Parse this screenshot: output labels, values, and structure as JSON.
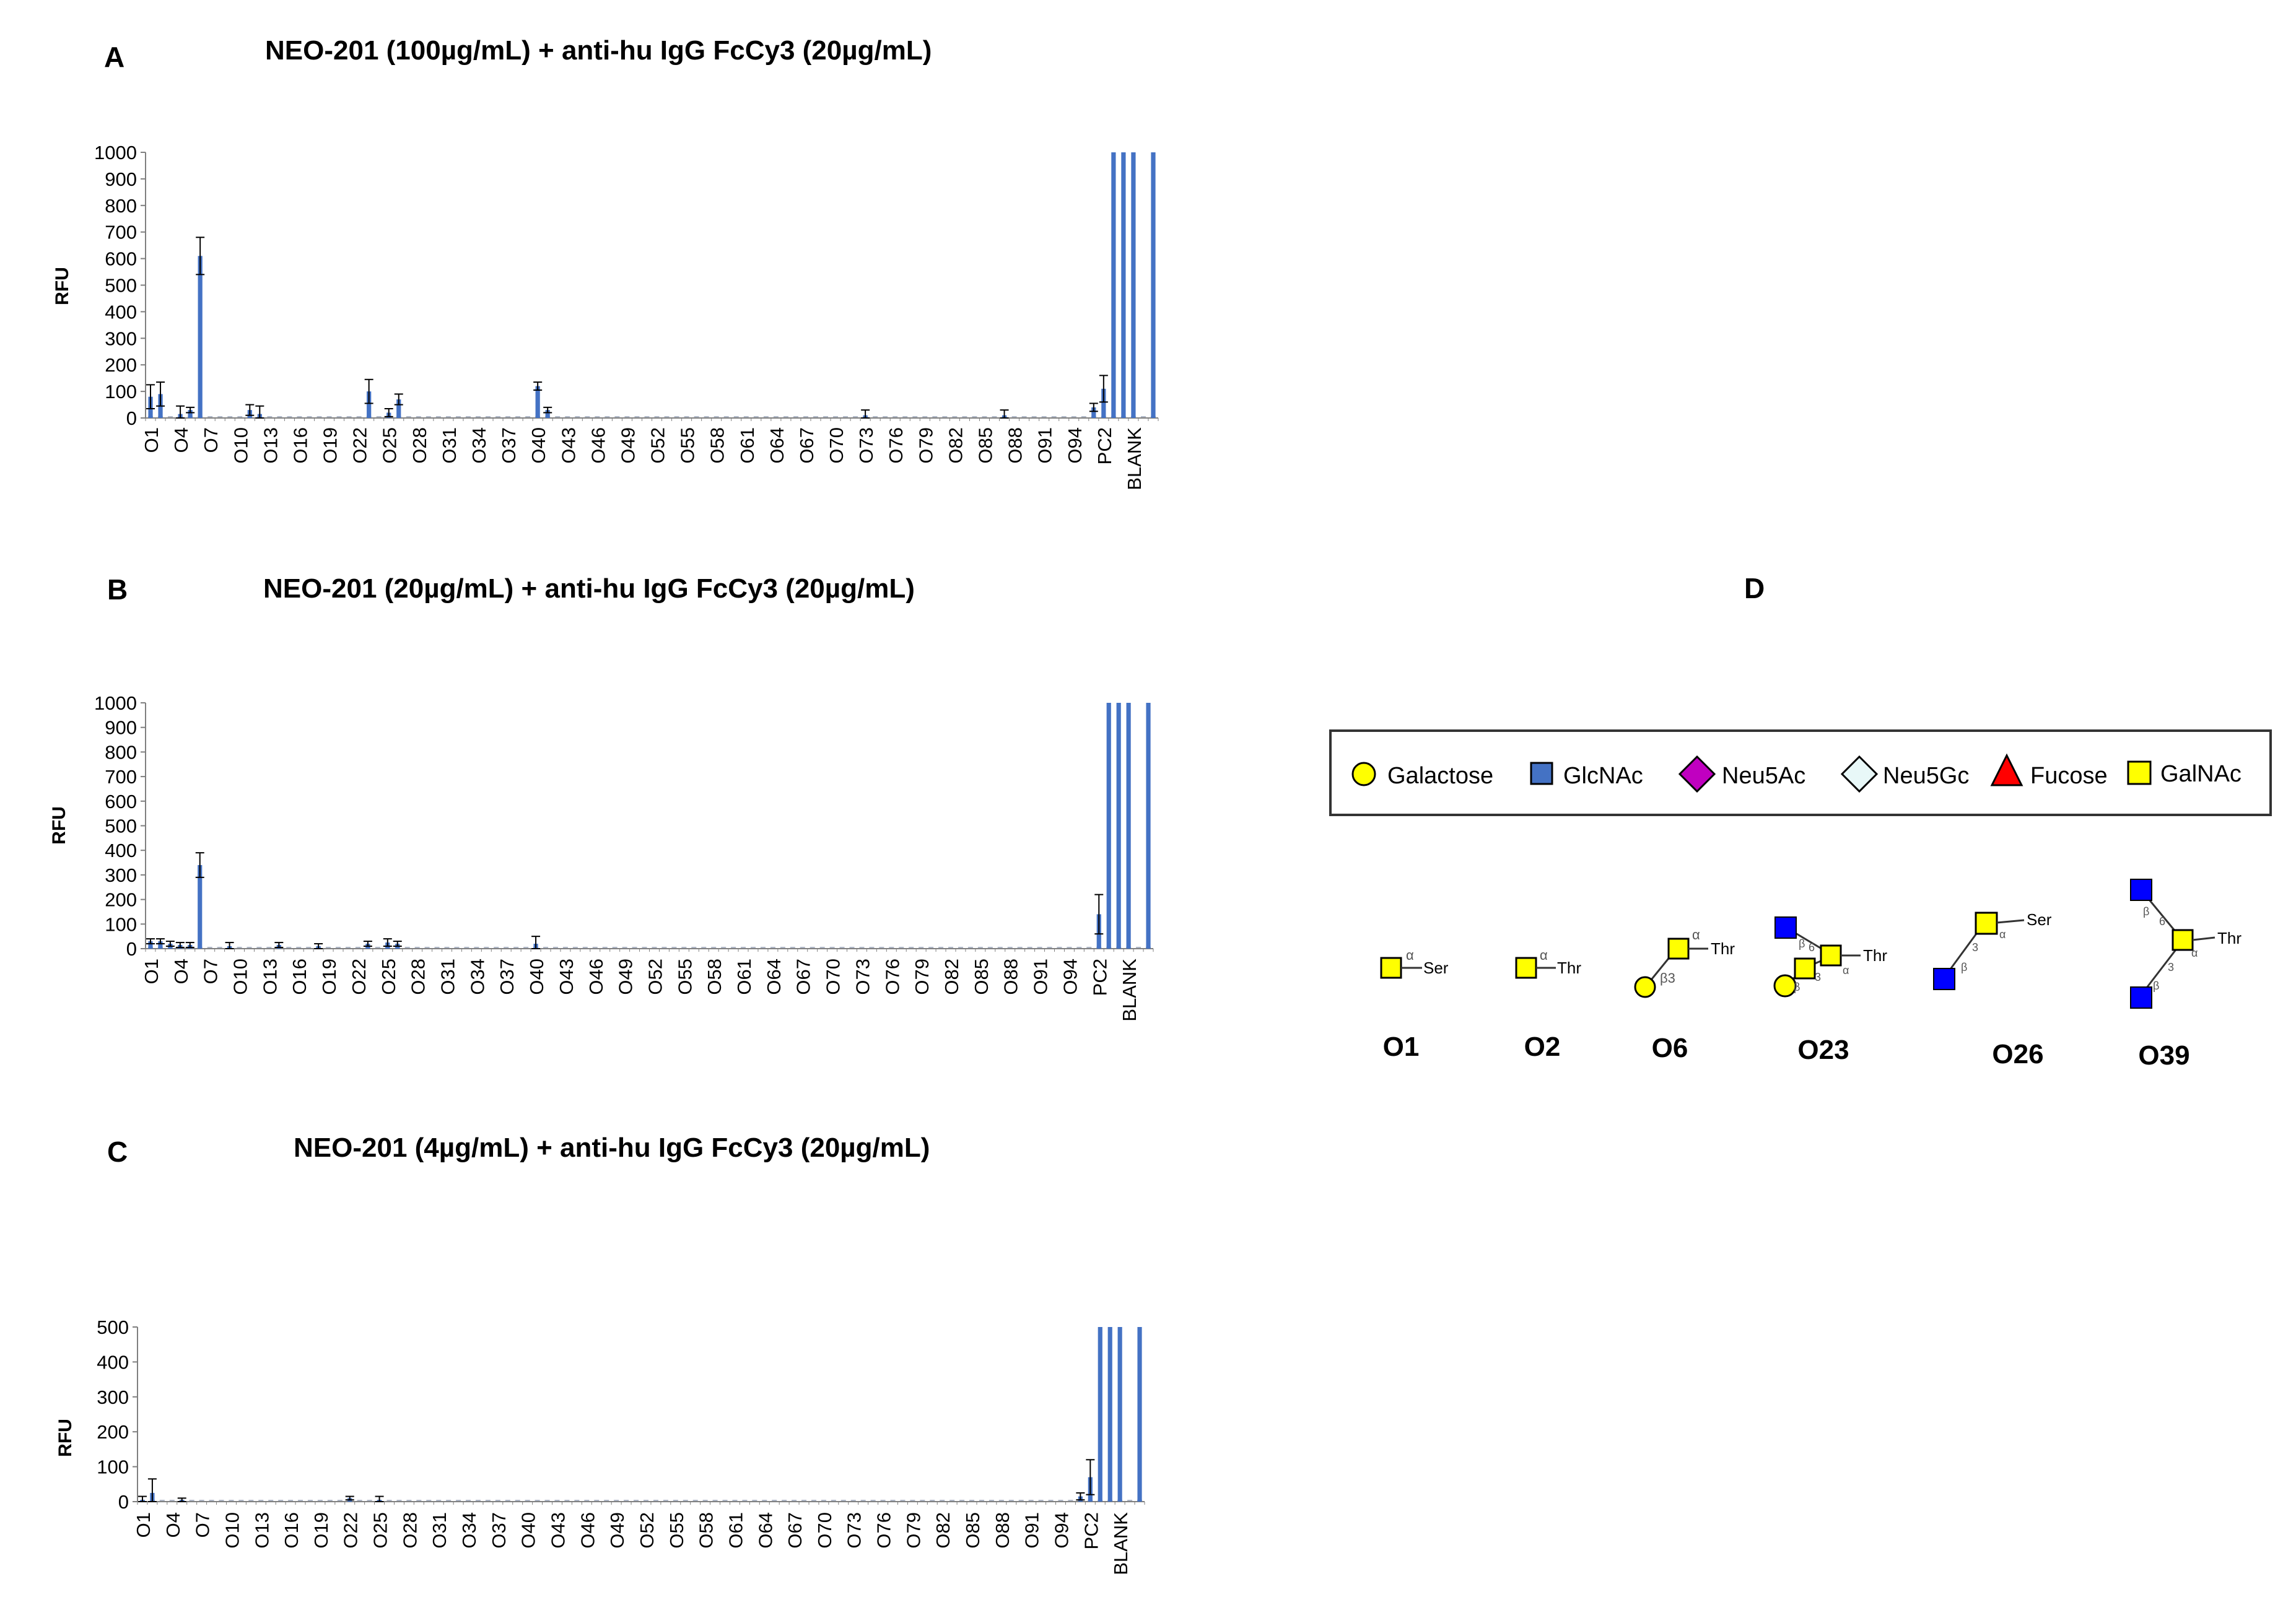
{
  "panels": [
    {
      "letter": "A",
      "title": "NEO-201 (100µg/mL) + anti-hu IgG FcCy3 (20µg/mL)"
    },
    {
      "letter": "B",
      "title": "NEO-201 (20µg/mL) + anti-hu IgG FcCy3 (20µg/mL)"
    },
    {
      "letter": "C",
      "title": "NEO-201 (4µg/mL) + anti-hu IgG FcCy3 (20µg/mL)"
    },
    {
      "letter": "D",
      "title": ""
    }
  ],
  "colors": {
    "bar": "#4472C4",
    "error": "#000000",
    "axis": "#7f7f7f"
  },
  "chart_data": [
    {
      "type": "bar",
      "title": "NEO-201 (100µg/mL) + anti-hu IgG FcCy3 (20µg/mL)",
      "ylabel": "RFU",
      "ylim": [
        0,
        1000
      ],
      "yticks": [
        0,
        100,
        200,
        300,
        400,
        500,
        600,
        700,
        800,
        900,
        1000
      ],
      "tick_labels": [
        "O1",
        "O4",
        "O7",
        "O10",
        "O13",
        "O16",
        "O19",
        "O22",
        "O25",
        "O28",
        "O31",
        "O34",
        "O37",
        "O40",
        "O43",
        "O46",
        "O49",
        "O52",
        "O55",
        "O58",
        "O61",
        "O64",
        "O67",
        "O70",
        "O73",
        "O76",
        "O79",
        "O82",
        "O85",
        "O88",
        "O91",
        "O94",
        "PC2",
        "BLANK"
      ],
      "bar_count": 102,
      "bars": [
        {
          "index": 0,
          "value": 80,
          "error": 45
        },
        {
          "index": 1,
          "value": 90,
          "error": 45
        },
        {
          "index": 3,
          "value": 15,
          "error": 30
        },
        {
          "index": 4,
          "value": 30,
          "error": 10
        },
        {
          "index": 5,
          "value": 610,
          "error": 70
        },
        {
          "index": 10,
          "value": 30,
          "error": 20
        },
        {
          "index": 11,
          "value": 15,
          "error": 30
        },
        {
          "index": 22,
          "value": 100,
          "error": 45
        },
        {
          "index": 24,
          "value": 20,
          "error": 15
        },
        {
          "index": 25,
          "value": 70,
          "error": 20
        },
        {
          "index": 39,
          "value": 120,
          "error": 15
        },
        {
          "index": 40,
          "value": 30,
          "error": 10
        },
        {
          "index": 72,
          "value": 10,
          "error": 20
        },
        {
          "index": 86,
          "value": 10,
          "error": 20
        },
        {
          "index": 95,
          "value": 40,
          "error": 15
        },
        {
          "index": 96,
          "value": 110,
          "error": 50
        },
        {
          "index": 97,
          "value": 1000,
          "error": 0
        },
        {
          "index": 98,
          "value": 1000,
          "error": 0
        },
        {
          "index": 99,
          "value": 1000,
          "error": 0
        },
        {
          "index": 101,
          "value": 1000,
          "error": 0
        }
      ]
    },
    {
      "type": "bar",
      "title": "NEO-201 (20µg/mL) + anti-hu IgG FcCy3 (20µg/mL)",
      "ylabel": "RFU",
      "ylim": [
        0,
        1000
      ],
      "yticks": [
        0,
        100,
        200,
        300,
        400,
        500,
        600,
        700,
        800,
        900,
        1000
      ],
      "tick_labels": [
        "O1",
        "O4",
        "O7",
        "O10",
        "O13",
        "O16",
        "O19",
        "O22",
        "O25",
        "O28",
        "O31",
        "O34",
        "O37",
        "O40",
        "O43",
        "O46",
        "O49",
        "O52",
        "O55",
        "O58",
        "O61",
        "O64",
        "O67",
        "O70",
        "O73",
        "O76",
        "O79",
        "O82",
        "O85",
        "O88",
        "O91",
        "O94",
        "PC2",
        "BLANK"
      ],
      "bar_count": 102,
      "bars": [
        {
          "index": 0,
          "value": 30,
          "error": 10
        },
        {
          "index": 1,
          "value": 30,
          "error": 10
        },
        {
          "index": 2,
          "value": 20,
          "error": 10
        },
        {
          "index": 3,
          "value": 15,
          "error": 10
        },
        {
          "index": 4,
          "value": 15,
          "error": 10
        },
        {
          "index": 5,
          "value": 340,
          "error": 50
        },
        {
          "index": 8,
          "value": 10,
          "error": 15
        },
        {
          "index": 13,
          "value": 15,
          "error": 10
        },
        {
          "index": 17,
          "value": 10,
          "error": 10
        },
        {
          "index": 22,
          "value": 20,
          "error": 10
        },
        {
          "index": 24,
          "value": 25,
          "error": 15
        },
        {
          "index": 25,
          "value": 20,
          "error": 10
        },
        {
          "index": 39,
          "value": 20,
          "error": 30
        },
        {
          "index": 96,
          "value": 140,
          "error": 80
        },
        {
          "index": 97,
          "value": 1000,
          "error": 0
        },
        {
          "index": 98,
          "value": 1000,
          "error": 0
        },
        {
          "index": 99,
          "value": 1000,
          "error": 0
        },
        {
          "index": 101,
          "value": 1000,
          "error": 0
        }
      ]
    },
    {
      "type": "bar",
      "title": "NEO-201 (4µg/mL) + anti-hu IgG FcCy3 (20µg/mL)",
      "ylabel": "RFU",
      "ylim": [
        0,
        500
      ],
      "yticks": [
        0,
        100,
        200,
        300,
        400,
        500
      ],
      "tick_labels": [
        "O1",
        "O4",
        "O7",
        "O10",
        "O13",
        "O16",
        "O19",
        "O22",
        "O25",
        "O28",
        "O31",
        "O34",
        "O37",
        "O40",
        "O43",
        "O46",
        "O49",
        "O52",
        "O55",
        "O58",
        "O61",
        "O64",
        "O67",
        "O70",
        "O73",
        "O76",
        "O79",
        "O82",
        "O85",
        "O88",
        "O91",
        "O94",
        "PC2",
        "BLANK"
      ],
      "bar_count": 102,
      "bars": [
        {
          "index": 0,
          "value": 5,
          "error": 10
        },
        {
          "index": 1,
          "value": 25,
          "error": 40
        },
        {
          "index": 4,
          "value": 5,
          "error": 5
        },
        {
          "index": 21,
          "value": 10,
          "error": 5
        },
        {
          "index": 24,
          "value": 5,
          "error": 10
        },
        {
          "index": 95,
          "value": 15,
          "error": 10
        },
        {
          "index": 96,
          "value": 70,
          "error": 50
        },
        {
          "index": 97,
          "value": 500,
          "error": 0
        },
        {
          "index": 98,
          "value": 500,
          "error": 0
        },
        {
          "index": 99,
          "value": 500,
          "error": 0
        },
        {
          "index": 101,
          "value": 500,
          "error": 0
        }
      ]
    }
  ],
  "legend": {
    "items": [
      {
        "label": "Galactose",
        "shape": "circle",
        "color": "#FFFF00"
      },
      {
        "label": "GlcNAc",
        "shape": "square",
        "color": "#4472C4"
      },
      {
        "label": "Neu5Ac",
        "shape": "diamond",
        "color": "#C000C0"
      },
      {
        "label": "Neu5Gc",
        "shape": "diamond",
        "color": "#E8F8F8"
      },
      {
        "label": "Fucose",
        "shape": "triangle",
        "color": "#FF0000"
      },
      {
        "label": "GalNAc",
        "shape": "square",
        "color": "#FFFF00"
      }
    ]
  },
  "glycans": {
    "O1": {
      "label": "O1",
      "aglycone": "Ser",
      "anomer": "α"
    },
    "O2": {
      "label": "O2",
      "aglycone": "Thr",
      "anomer": "α"
    },
    "O6": {
      "label": "O6",
      "aglycone": "Thr",
      "anomer": "α",
      "link": "β3"
    },
    "O23": {
      "label": "O23",
      "aglycone": "Thr",
      "anomer": "α",
      "link_a": "β",
      "link_b": "6",
      "link_c": "β",
      "link_d": "3"
    },
    "O26": {
      "label": "O26",
      "aglycone": "Ser",
      "anomer": "α",
      "link_a": "β",
      "link_b": "3"
    },
    "O39": {
      "label": "O39",
      "aglycone": "Thr",
      "anomer": "α",
      "link_a": "β",
      "link_b": "6",
      "link_c": "β",
      "link_d": "3"
    }
  }
}
